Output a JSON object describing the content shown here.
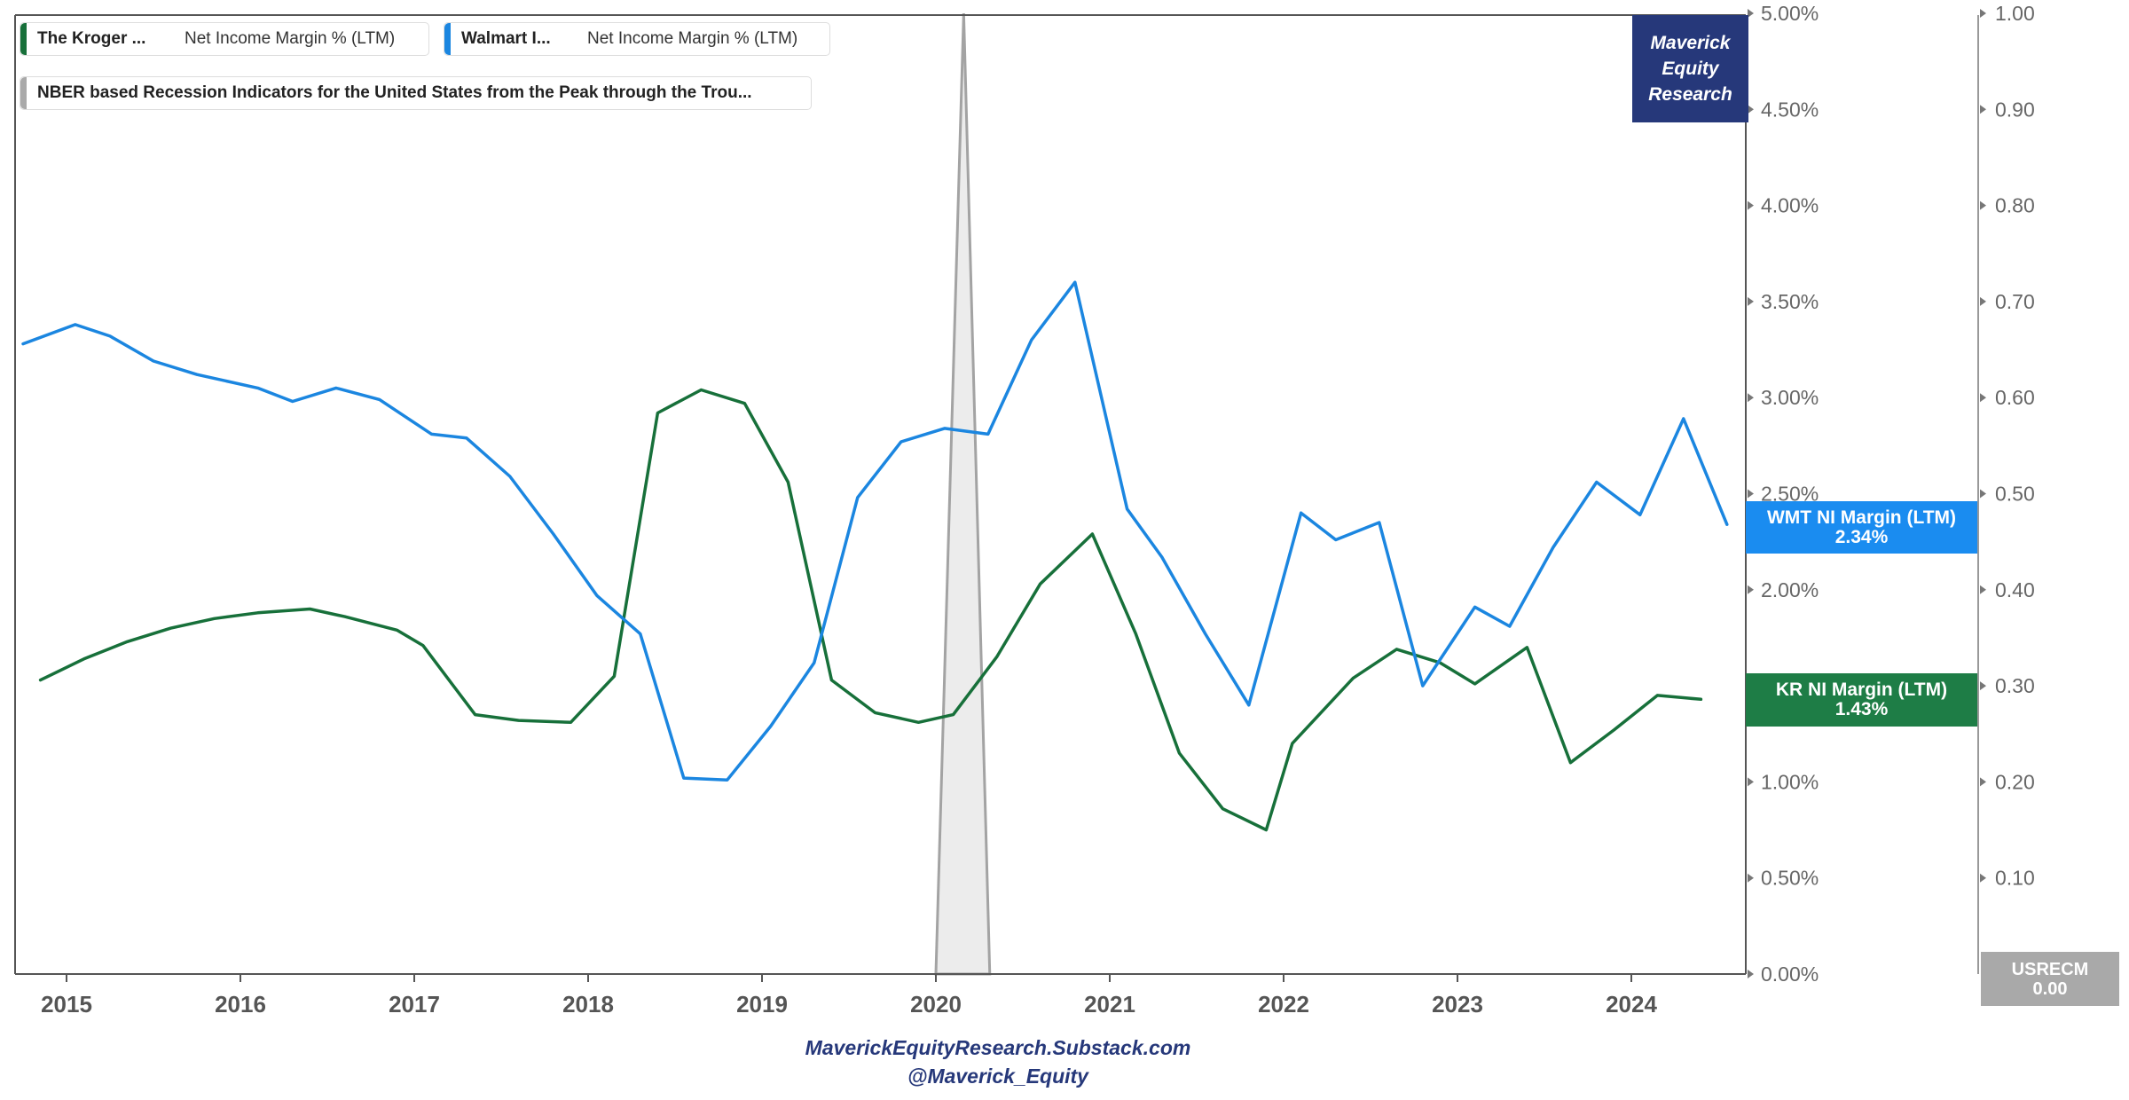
{
  "chart_data": {
    "type": "line",
    "x_ticks": [
      "2015",
      "2016",
      "2017",
      "2018",
      "2019",
      "2020",
      "2021",
      "2022",
      "2023",
      "2024"
    ],
    "left_axis_ticks": [
      "0.00%",
      "0.50%",
      "1.00%",
      "1.50%",
      "2.00%",
      "2.50%",
      "3.00%",
      "3.50%",
      "4.00%",
      "4.50%",
      "5.00%"
    ],
    "right_axis_ticks": [
      "0.10",
      "0.20",
      "0.30",
      "0.40",
      "0.50",
      "0.60",
      "0.70",
      "0.80",
      "0.90",
      "1.00"
    ],
    "ylim_left": [
      0,
      5
    ],
    "ylim_right": [
      0,
      1
    ],
    "xlim": [
      2014.73,
      2024.75
    ],
    "series": [
      {
        "name": "Net Income Margin % (LTM)",
        "legend_label": "The Kroger Co.",
        "color": "#17703a",
        "x": [
          2014.85,
          2015.1,
          2015.35,
          2015.6,
          2015.85,
          2016.1,
          2016.4,
          2016.6,
          2016.9,
          2017.05,
          2017.35,
          2017.6,
          2017.9,
          2018.15,
          2018.4,
          2018.65,
          2018.9,
          2019.15,
          2019.4,
          2019.65,
          2019.9,
          2020.1,
          2020.35,
          2020.6,
          2020.9,
          2021.15,
          2021.4,
          2021.65,
          2021.9,
          2022.05,
          2022.4,
          2022.65,
          2022.9,
          2023.1,
          2023.4,
          2023.65,
          2023.9,
          2024.15,
          2024.4
        ],
        "values": [
          1.53,
          1.64,
          1.73,
          1.8,
          1.85,
          1.88,
          1.9,
          1.86,
          1.79,
          1.71,
          1.35,
          1.32,
          1.31,
          1.55,
          2.92,
          3.04,
          2.97,
          2.56,
          1.53,
          1.36,
          1.31,
          1.35,
          1.65,
          2.03,
          2.29,
          1.77,
          1.15,
          0.86,
          0.75,
          1.2,
          1.54,
          1.69,
          1.62,
          1.51,
          1.7,
          1.1,
          1.27,
          1.45,
          1.43
        ]
      },
      {
        "name": "Net Income Margin % (LTM)",
        "legend_label": "Walmart Inc.",
        "color": "#1b86e0",
        "x": [
          2014.75,
          2015.05,
          2015.25,
          2015.5,
          2015.75,
          2016.1,
          2016.3,
          2016.55,
          2016.8,
          2017.1,
          2017.3,
          2017.55,
          2017.8,
          2018.05,
          2018.3,
          2018.55,
          2018.8,
          2019.05,
          2019.3,
          2019.55,
          2019.8,
          2020.05,
          2020.3,
          2020.55,
          2020.8,
          2021.1,
          2021.3,
          2021.55,
          2021.8,
          2022.1,
          2022.3,
          2022.55,
          2022.8,
          2023.1,
          2023.3,
          2023.55,
          2023.8,
          2024.05,
          2024.3,
          2024.55
        ],
        "values": [
          3.28,
          3.38,
          3.32,
          3.19,
          3.12,
          3.05,
          2.98,
          3.05,
          2.99,
          2.81,
          2.79,
          2.59,
          2.29,
          1.97,
          1.77,
          1.02,
          1.01,
          1.29,
          1.62,
          2.48,
          2.77,
          2.84,
          2.81,
          3.3,
          3.6,
          2.42,
          2.17,
          1.77,
          1.4,
          2.4,
          2.26,
          2.35,
          1.5,
          1.91,
          1.81,
          2.22,
          2.56,
          2.39,
          2.89,
          2.34
        ]
      },
      {
        "name": "USRECM",
        "legend_label": "NBER based Recession Indicators for the United States from the Peak through the Trough",
        "color": "#a9a9a9",
        "axis": "right",
        "type": "area",
        "x": [
          2020.0,
          2020.16,
          2020.31
        ],
        "values": [
          0,
          1,
          0
        ]
      }
    ]
  },
  "legend": {
    "kroger_name": "The Kroger ...",
    "kroger_metric": "Net Income Margin % (LTM)",
    "walmart_name": "Walmart I...",
    "walmart_metric": "Net Income Margin % (LTM)",
    "recession": "NBER based Recession Indicators for the United States from the Peak through the Trou..."
  },
  "brand": {
    "line1": "Maverick",
    "line2": "Equity",
    "line3": "Research"
  },
  "value_tags": {
    "wmt_label": "WMT NI Margin (LTM)",
    "wmt_value": "2.34%",
    "kr_label": "KR NI Margin (LTM)",
    "kr_value": "1.43%",
    "rec_label": "USRECM",
    "rec_value": "0.00"
  },
  "footer": {
    "site": "MaverickEquityResearch.Substack.com",
    "handle": "@Maverick_Equity"
  },
  "colors": {
    "kroger": "#17703a",
    "walmart": "#1b86e0",
    "recession_fill": "#ececec",
    "recession_stroke": "#a3a3a3",
    "brand": "#26387a",
    "wmt_tag": "#1a8cf0",
    "kr_tag": "#1e7d46"
  }
}
